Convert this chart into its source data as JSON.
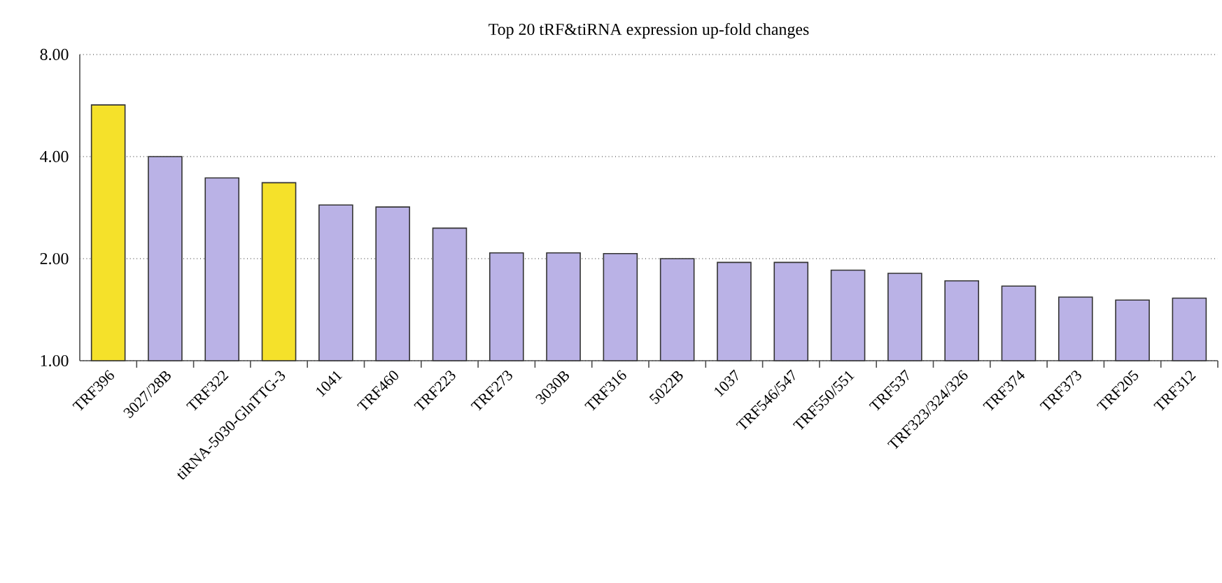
{
  "chart_data": {
    "type": "bar",
    "title": "Top 20 tRF&tiRNA expression up-fold changes",
    "categories": [
      "TRF396",
      "3027/28B",
      "TRF322",
      "tiRNA-5030-GlnTTG-3",
      "1041",
      "TRF460",
      "TRF223",
      "TRF273",
      "3030B",
      "TRF316",
      "5022B",
      "1037",
      "TRF546/547",
      "TRF550/551",
      "TRF537",
      "TRF323/324/326",
      "TRF374",
      "TRF373",
      "TRF205",
      "TRF312"
    ],
    "values": [
      5.68,
      4.0,
      3.46,
      3.35,
      2.88,
      2.84,
      2.46,
      2.08,
      2.08,
      2.07,
      2.0,
      1.95,
      1.95,
      1.85,
      1.81,
      1.72,
      1.66,
      1.54,
      1.51,
      1.53
    ],
    "colors": [
      "#f5e12a",
      "#bab2e6",
      "#bab2e6",
      "#f5e12a",
      "#bab2e6",
      "#bab2e6",
      "#bab2e6",
      "#bab2e6",
      "#bab2e6",
      "#bab2e6",
      "#bab2e6",
      "#bab2e6",
      "#bab2e6",
      "#bab2e6",
      "#bab2e6",
      "#bab2e6",
      "#bab2e6",
      "#bab2e6",
      "#bab2e6",
      "#bab2e6"
    ],
    "log": "y",
    "ylim": [
      1,
      8
    ],
    "yticks": [
      {
        "value": 1,
        "label": "1.00"
      },
      {
        "value": 2,
        "label": "2.00"
      },
      {
        "value": 4,
        "label": "4.00"
      },
      {
        "value": 8,
        "label": "8.00"
      }
    ],
    "grid": "y"
  }
}
